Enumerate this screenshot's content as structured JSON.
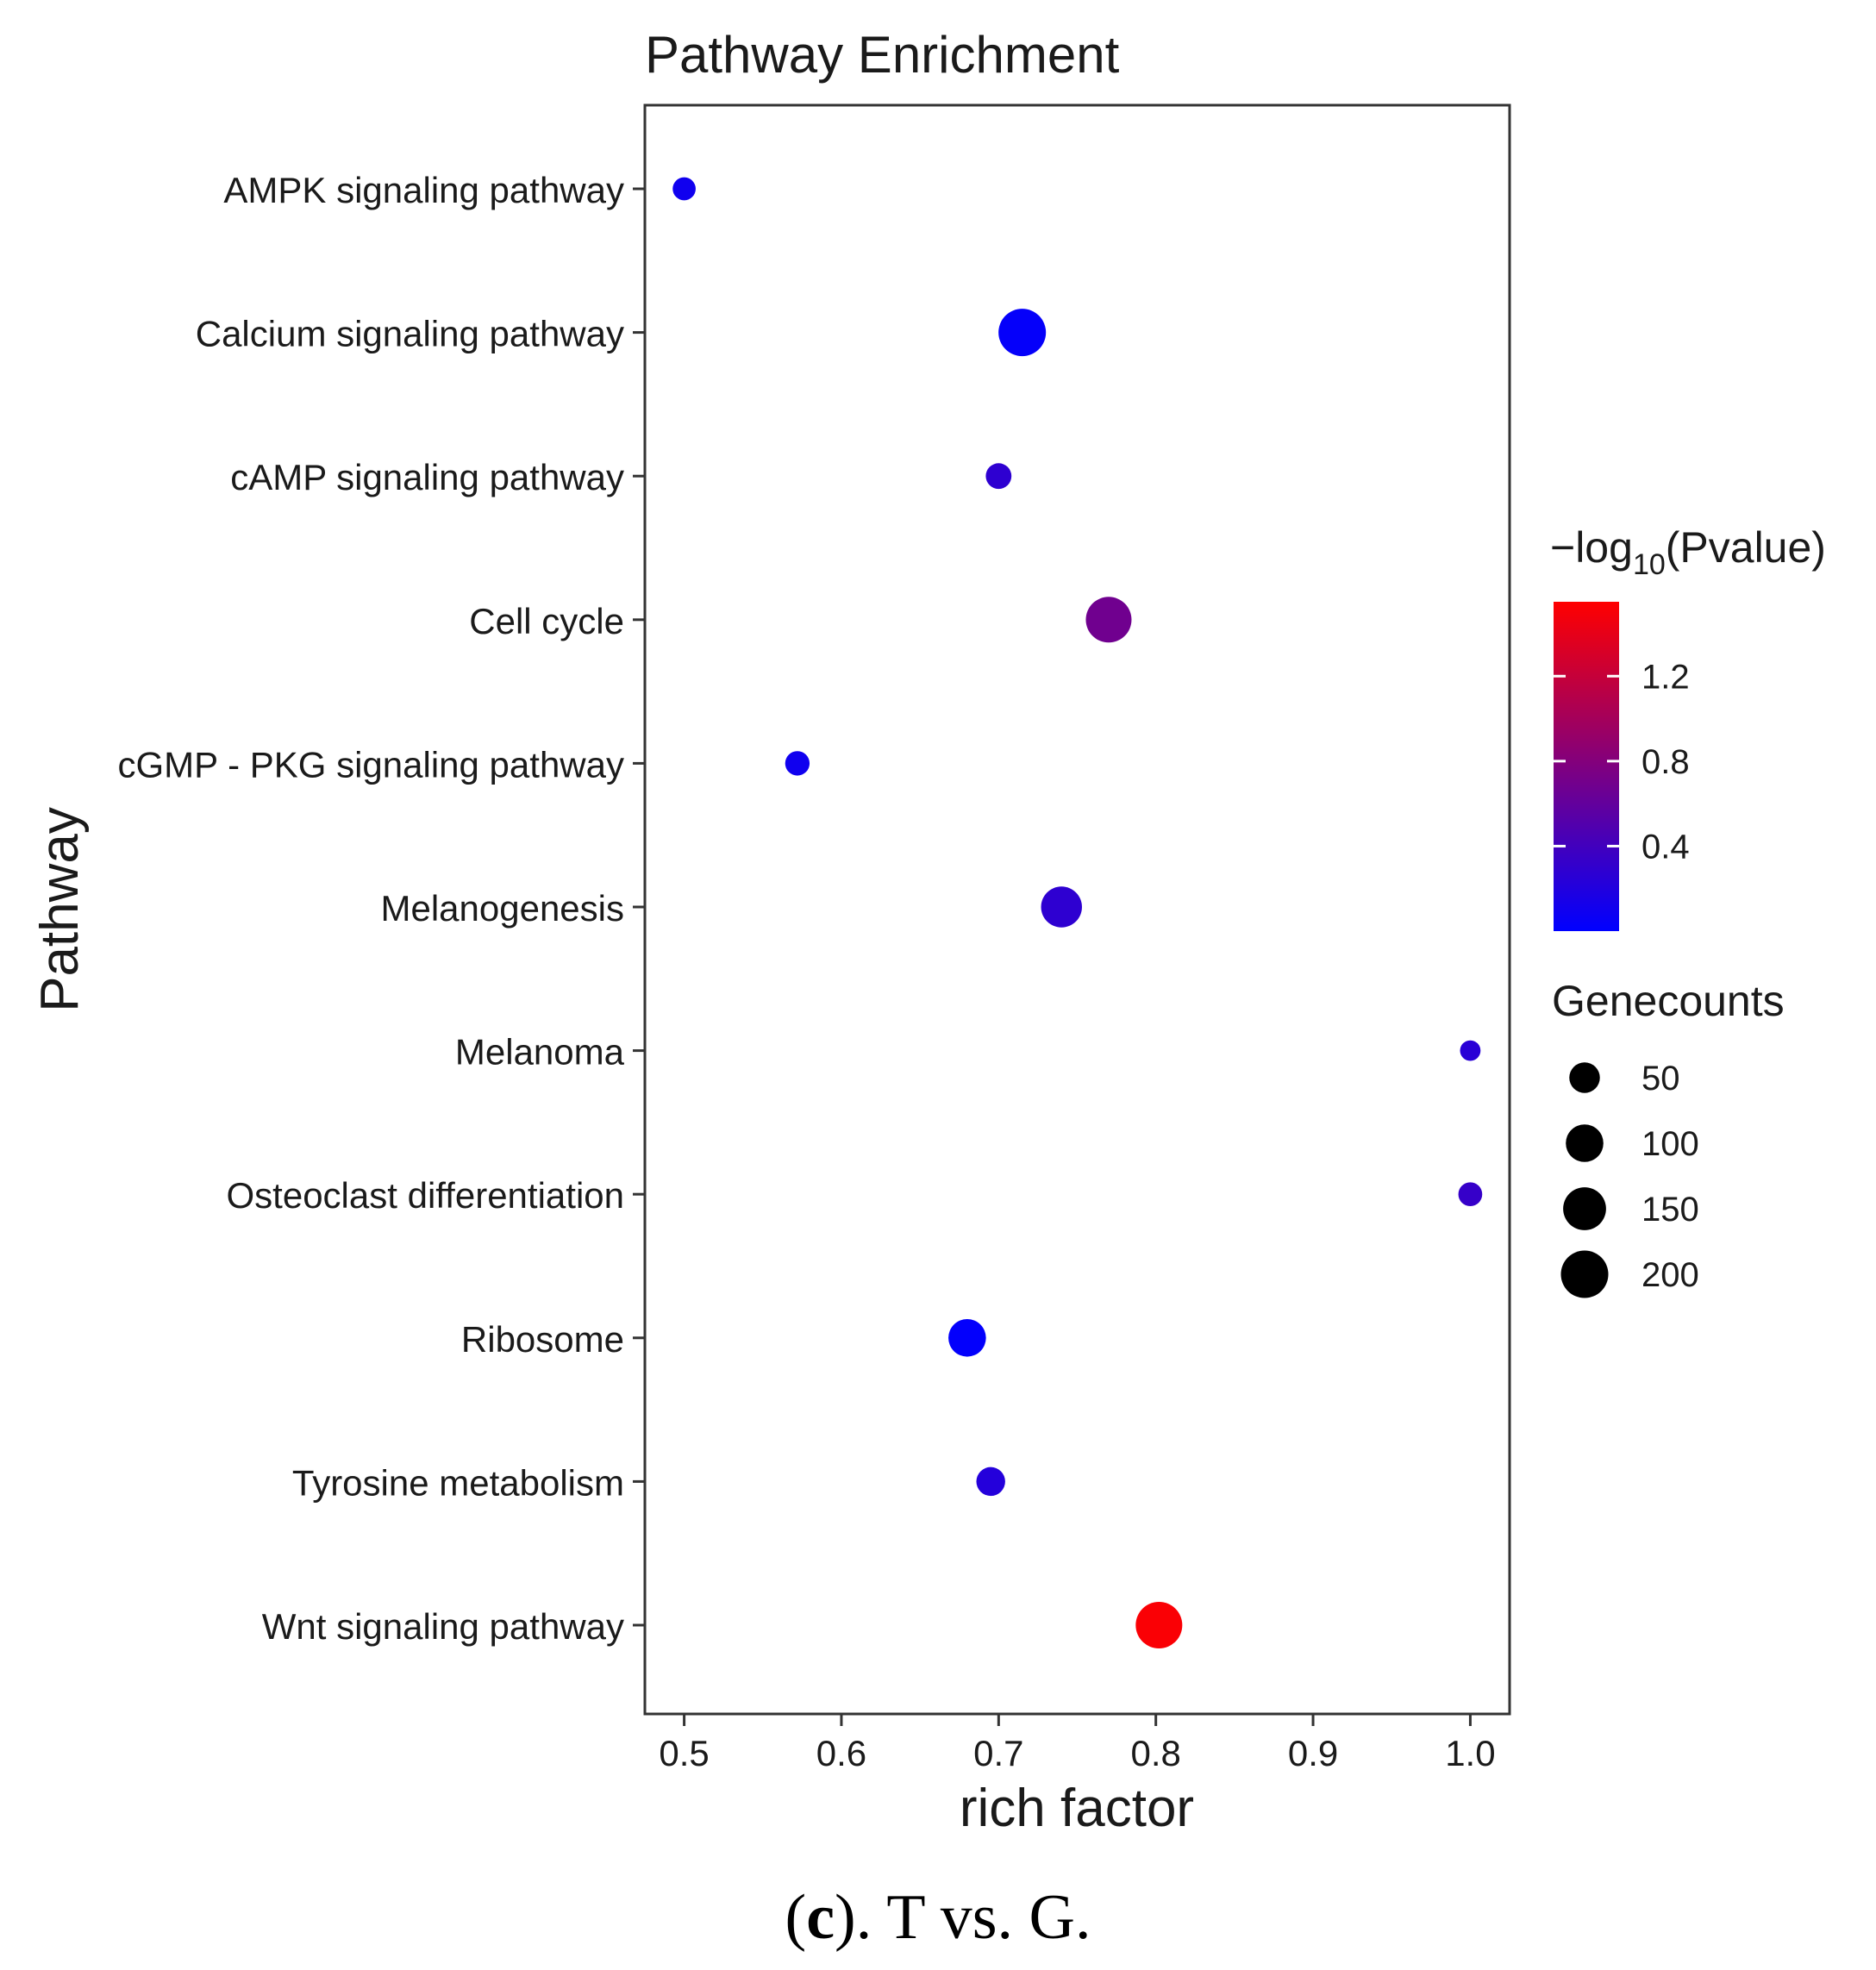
{
  "chart_data": {
    "type": "scatter",
    "title": "Pathway Enrichment",
    "xlabel": "rich factor",
    "ylabel": "Pathway",
    "xlim": [
      0.475,
      1.025
    ],
    "xticks": [
      "0.5",
      "0.6",
      "0.7",
      "0.8",
      "0.9",
      "1.0"
    ],
    "categories": [
      "AMPK signaling pathway",
      "Calcium signaling pathway",
      "cAMP signaling pathway",
      "Cell cycle",
      "cGMP - PKG signaling pathway",
      "Melanogenesis",
      "Melanoma",
      "Osteoclast differentiation",
      "Ribosome",
      "Tyrosine metabolism",
      "Wnt signaling pathway"
    ],
    "points": [
      {
        "pathway": "AMPK signaling pathway",
        "rich_factor": 0.5,
        "neg_log10_pvalue": 0.1,
        "genecounts": 15
      },
      {
        "pathway": "Calcium signaling pathway",
        "rich_factor": 0.715,
        "neg_log10_pvalue": 0.03,
        "genecounts": 200
      },
      {
        "pathway": "cAMP signaling pathway",
        "rich_factor": 0.7,
        "neg_log10_pvalue": 0.28,
        "genecounts": 25
      },
      {
        "pathway": "Cell cycle",
        "rich_factor": 0.77,
        "neg_log10_pvalue": 0.68,
        "genecounts": 180
      },
      {
        "pathway": "cGMP - PKG signaling pathway",
        "rich_factor": 0.572,
        "neg_log10_pvalue": 0.1,
        "genecounts": 20
      },
      {
        "pathway": "Melanogenesis",
        "rich_factor": 0.74,
        "neg_log10_pvalue": 0.28,
        "genecounts": 130
      },
      {
        "pathway": "Melanoma",
        "rich_factor": 1.0,
        "neg_log10_pvalue": 0.25,
        "genecounts": 8
      },
      {
        "pathway": "Osteoclast differentiation",
        "rich_factor": 1.0,
        "neg_log10_pvalue": 0.33,
        "genecounts": 18
      },
      {
        "pathway": "Ribosome",
        "rich_factor": 0.68,
        "neg_log10_pvalue": 0.02,
        "genecounts": 100
      },
      {
        "pathway": "Tyrosine metabolism",
        "rich_factor": 0.695,
        "neg_log10_pvalue": 0.22,
        "genecounts": 40
      },
      {
        "pathway": "Wnt signaling pathway",
        "rich_factor": 0.802,
        "neg_log10_pvalue": 1.52,
        "genecounts": 190
      }
    ],
    "color_legend": {
      "title_prefix": "−log",
      "title_subscript": "10",
      "title_suffix": "(Pvalue)",
      "range": [
        0.0,
        1.55
      ],
      "ticks": [
        {
          "label": "1.2",
          "value": 1.2
        },
        {
          "label": "0.8",
          "value": 0.8
        },
        {
          "label": "0.4",
          "value": 0.4
        }
      ],
      "low_color": "#0000ff",
      "high_color": "#ff0000"
    },
    "size_legend": {
      "title": "Genecounts",
      "entries": [
        {
          "label": "50",
          "value": 50
        },
        {
          "label": "100",
          "value": 100
        },
        {
          "label": "150",
          "value": 150
        },
        {
          "label": "200",
          "value": 200
        }
      ]
    }
  },
  "caption": {
    "prefix": "(",
    "letter": "c",
    "suffix": "). T vs. G."
  }
}
